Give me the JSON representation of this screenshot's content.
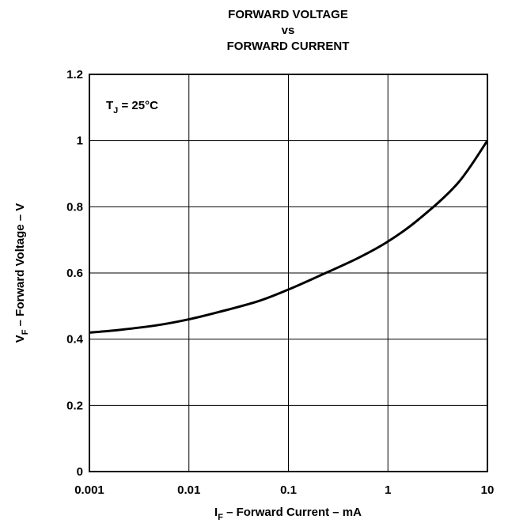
{
  "chart_data": {
    "type": "line",
    "title": [
      "FORWARD VOLTAGE",
      "vs",
      "FORWARD CURRENT"
    ],
    "xlabel": {
      "main": "I",
      "sub": "F",
      "rest": " – Forward Current – mA"
    },
    "ylabel": {
      "main": "V",
      "sub": "F",
      "rest": " – Forward Voltage – V"
    },
    "x_scale": "log",
    "xlim": [
      0.001,
      10
    ],
    "ylim": [
      0,
      1.2
    ],
    "x_ticks": [
      0.001,
      0.01,
      0.1,
      1,
      10
    ],
    "x_tick_labels": [
      "0.001",
      "0.01",
      "0.1",
      "1",
      "10"
    ],
    "y_ticks": [
      0,
      0.2,
      0.4,
      0.6,
      0.8,
      1,
      1.2
    ],
    "y_tick_labels": [
      "0",
      "0.2",
      "0.4",
      "0.6",
      "0.8",
      "1",
      "1.2"
    ],
    "grid": true,
    "annotation": {
      "main": "T",
      "sub": "J",
      "rest": " = 25°C"
    },
    "series": [
      {
        "x": [
          0.001,
          0.002,
          0.005,
          0.01,
          0.02,
          0.05,
          0.1,
          0.2,
          0.5,
          1,
          2,
          5,
          10
        ],
        "y": [
          0.42,
          0.428,
          0.443,
          0.46,
          0.482,
          0.515,
          0.55,
          0.59,
          0.645,
          0.695,
          0.76,
          0.87,
          1.0
        ],
        "color": "#000000"
      }
    ]
  }
}
